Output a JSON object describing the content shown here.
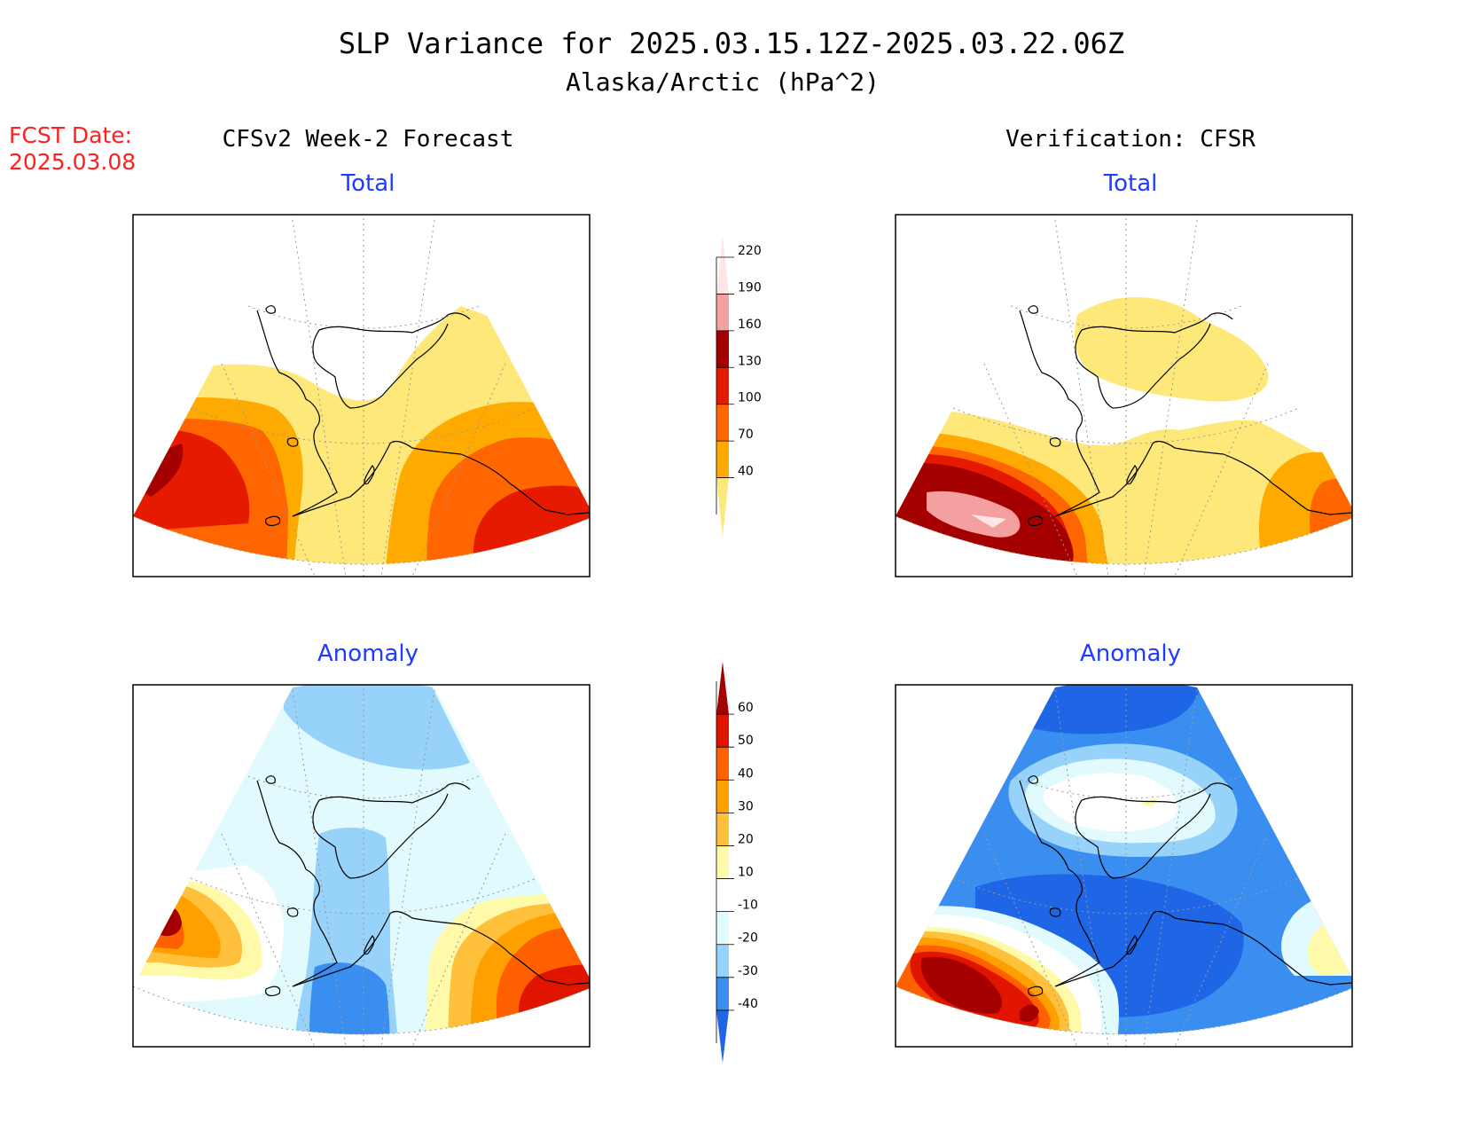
{
  "header": {
    "title": "SLP Variance for 2025.03.15.12Z-2025.03.22.06Z",
    "subtitle": "Alaska/Arctic (hPa^2)"
  },
  "forecast_date": {
    "label": "FCST Date:",
    "value": "2025.03.08"
  },
  "columns": {
    "left": "CFSv2 Week-2 Forecast",
    "right": "Verification: CFSR"
  },
  "panels": {
    "top_left": "Total",
    "top_right": "Total",
    "bottom_left": "Anomaly",
    "bottom_right": "Anomaly"
  },
  "colors": {
    "total_scale": [
      "#ffe87a",
      "#ffaa00",
      "#ff6600",
      "#e61a00",
      "#a50000",
      "#f5a0a0",
      "#ffe6e6"
    ],
    "anomaly_scale": [
      "#1f66e6",
      "#3a8ef0",
      "#96d2fa",
      "#e1fafe",
      "#ffffff",
      "#fffaaa",
      "#ffc03c",
      "#ffa000",
      "#ff6000",
      "#e11400",
      "#a50000"
    ],
    "coast": "#000000",
    "grid": "#999999"
  },
  "chart_data": [
    {
      "type": "colorbar",
      "name_key": "total",
      "tick_labels": [
        "40",
        "70",
        "100",
        "130",
        "160",
        "190",
        "220"
      ],
      "colors": [
        "#ffe87a",
        "#ffaa00",
        "#ff6600",
        "#e61a00",
        "#a50000",
        "#f5a0a0",
        "#ffe6e6"
      ]
    },
    {
      "type": "colorbar",
      "name_key": "anomaly",
      "tick_labels": [
        "-40",
        "-30",
        "-20",
        "-10",
        "10",
        "20",
        "30",
        "40",
        "50",
        "60"
      ],
      "colors": [
        "#1f66e6",
        "#3a8ef0",
        "#96d2fa",
        "#e1fafe",
        "#ffffff",
        "#fffaaa",
        "#ffc03c",
        "#ffa000",
        "#ff6000",
        "#e11400",
        "#a50000"
      ]
    }
  ]
}
